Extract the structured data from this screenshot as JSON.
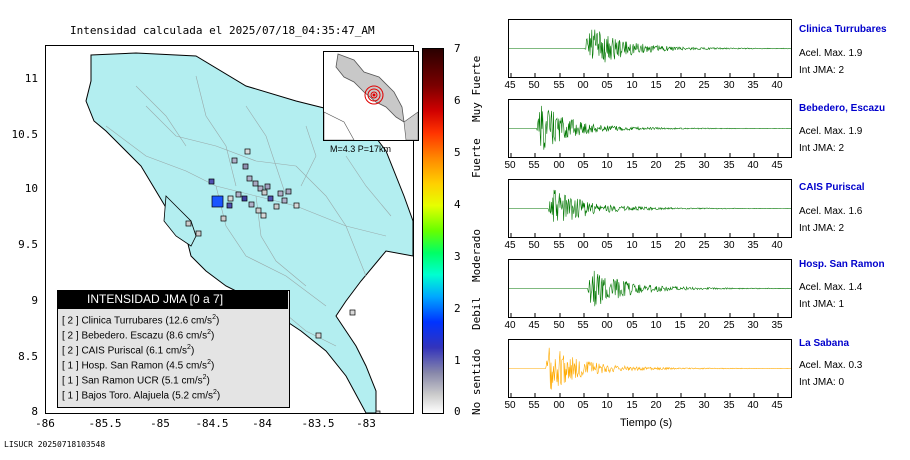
{
  "header": {
    "title": "Intensidad calculada el 2025/07/18_04:35:47_AM"
  },
  "map": {
    "y_ticks": [
      "11",
      "10.5",
      "10",
      "9.5",
      "9",
      "8.5",
      "8"
    ],
    "x_ticks": [
      "-86",
      "-85.5",
      "-85",
      "-84.5",
      "-84",
      "-83.5",
      "-83"
    ],
    "inset_label": "M=4.3 P=17km",
    "land_color": "#b3eef0"
  },
  "legend": {
    "title": "INTENSIDAD JMA [0 a 7]",
    "rows": [
      {
        "text": "[ 2 ]  Clinica Turrubares (12.6 cm/s",
        "unit": "2",
        "close": ")"
      },
      {
        "text": "[ 2 ]  Bebedero. Escazu (8.6 cm/s",
        "unit": "2",
        "close": ")"
      },
      {
        "text": "[ 2 ]  CAIS Puriscal (6.1 cm/s",
        "unit": "2",
        "close": ")"
      },
      {
        "text": "[ 1 ]  Hosp. San Ramon (4.5 cm/s",
        "unit": "2",
        "close": ")"
      },
      {
        "text": "[ 1 ]  San Ramon UCR (5.1 cm/s",
        "unit": "2",
        "close": ")"
      },
      {
        "text": "[ 1 ]  Bajos Toro. Alajuela (5.2 cm/s",
        "unit": "2",
        "close": ")"
      }
    ]
  },
  "colorbar": {
    "ticks": [
      "7",
      "6",
      "5",
      "4",
      "3",
      "2",
      "1",
      "0"
    ],
    "labels": [
      "Muy Fuerte",
      "Fuerte",
      "Moderado",
      "Debil",
      "No sentido"
    ]
  },
  "stations": [
    {
      "name": "Clinica Turrubares",
      "accel": "Acel. Max. 1.9",
      "jma": "Int JMA: 2",
      "color": "#007700",
      "ticks": [
        "45",
        "50",
        "55",
        "00",
        "05",
        "10",
        "15",
        "20",
        "25",
        "30",
        "35",
        "40"
      ],
      "onset": 0.27,
      "peak": 1.0
    },
    {
      "name": "Bebedero, Escazu",
      "accel": "Acel. Max. 1.9",
      "jma": "Int JMA: 2",
      "color": "#007700",
      "ticks": [
        "50",
        "55",
        "00",
        "05",
        "10",
        "15",
        "20",
        "25",
        "30",
        "35",
        "40",
        "45"
      ],
      "onset": 0.1,
      "peak": 1.0
    },
    {
      "name": "CAIS Puriscal",
      "accel": "Acel. Max. 1.6",
      "jma": "Int JMA: 2",
      "color": "#007700",
      "ticks": [
        "45",
        "50",
        "55",
        "00",
        "05",
        "10",
        "15",
        "20",
        "25",
        "30",
        "35",
        "40"
      ],
      "onset": 0.14,
      "peak": 0.85
    },
    {
      "name": "Hosp. San Ramon",
      "accel": "Acel. Max. 1.4",
      "jma": "Int JMA: 1",
      "color": "#007700",
      "ticks": [
        "40",
        "45",
        "50",
        "55",
        "00",
        "05",
        "10",
        "15",
        "20",
        "25",
        "30",
        "35"
      ],
      "onset": 0.28,
      "peak": 0.9
    },
    {
      "name": "La Sabana",
      "accel": "Acel. Max. 0.3",
      "jma": "Int JMA: 0",
      "color": "#ffaa00",
      "ticks": [
        "50",
        "55",
        "00",
        "05",
        "10",
        "15",
        "20",
        "25",
        "30",
        "35",
        "40",
        "45"
      ],
      "onset": 0.13,
      "peak": 1.0
    }
  ],
  "x_axis_label": "Tiempo (s)",
  "footer": "LISUCR 20250718103548"
}
